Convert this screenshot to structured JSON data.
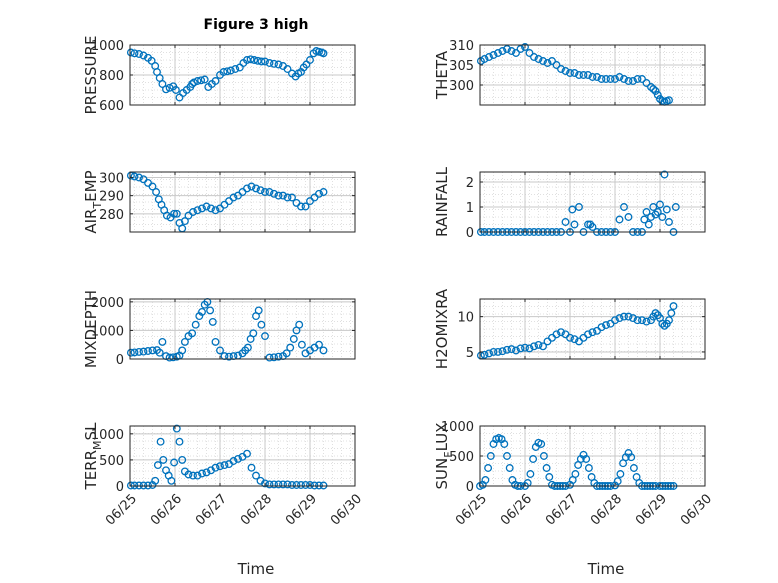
{
  "figure": {
    "title": "Figure 3 high"
  },
  "colors": {
    "marker": "#0072BD",
    "grid": "#c8c8c8",
    "axis": "#262626"
  },
  "chart_data": [
    {
      "type": "scatter",
      "id": "pressure",
      "title": "Figure 3 high",
      "ylabel": "PRESSURE",
      "ylabel_parts": [
        {
          "t": "PRESSURE",
          "s": "n"
        }
      ],
      "xlim": [
        0,
        5
      ],
      "ylim": [
        600,
        1000
      ],
      "yticks": [
        600,
        800,
        1000
      ],
      "grid": true,
      "x": [
        0.02,
        0.1,
        0.2,
        0.3,
        0.4,
        0.48,
        0.56,
        0.6,
        0.66,
        0.72,
        0.8,
        0.88,
        0.96,
        1.02,
        1.1,
        1.18,
        1.26,
        1.34,
        1.38,
        1.42,
        1.5,
        1.58,
        1.66,
        1.74,
        1.82,
        1.9,
        2.0,
        2.08,
        2.16,
        2.24,
        2.34,
        2.44,
        2.52,
        2.6,
        2.68,
        2.76,
        2.84,
        2.92,
        3.0,
        3.1,
        3.2,
        3.3,
        3.4,
        3.5,
        3.6,
        3.68,
        3.74,
        3.8,
        3.86,
        3.92,
        4.0,
        4.08,
        4.14,
        4.2,
        4.26,
        4.3
      ],
      "y": [
        950,
        945,
        940,
        930,
        915,
        895,
        860,
        820,
        780,
        740,
        705,
        715,
        725,
        700,
        650,
        680,
        700,
        720,
        740,
        750,
        760,
        765,
        770,
        720,
        740,
        760,
        800,
        820,
        825,
        830,
        840,
        850,
        880,
        900,
        905,
        900,
        895,
        890,
        890,
        880,
        875,
        870,
        860,
        840,
        810,
        790,
        810,
        820,
        850,
        870,
        900,
        945,
        960,
        955,
        950,
        945
      ]
    },
    {
      "type": "scatter",
      "id": "theta",
      "ylabel": "THETA",
      "ylabel_parts": [
        {
          "t": "THETA",
          "s": "n"
        }
      ],
      "xlim": [
        0,
        5
      ],
      "ylim": [
        295,
        310
      ],
      "yticks": [
        300,
        305,
        310
      ],
      "grid": true,
      "x": [
        0.02,
        0.1,
        0.2,
        0.3,
        0.4,
        0.5,
        0.6,
        0.7,
        0.8,
        0.9,
        1.0,
        1.1,
        1.2,
        1.3,
        1.4,
        1.5,
        1.6,
        1.7,
        1.8,
        1.9,
        2.0,
        2.1,
        2.2,
        2.3,
        2.4,
        2.5,
        2.6,
        2.7,
        2.8,
        2.9,
        3.0,
        3.1,
        3.2,
        3.3,
        3.4,
        3.5,
        3.6,
        3.7,
        3.8,
        3.85,
        3.9,
        3.95,
        4.0,
        4.05,
        4.1,
        4.15,
        4.2
      ],
      "y": [
        306,
        306.5,
        307,
        307.5,
        308,
        308.5,
        309,
        308.5,
        308,
        309,
        309.5,
        308,
        307,
        306.5,
        306,
        305.5,
        306,
        305,
        304,
        303.5,
        303,
        303,
        302.5,
        302.5,
        302.5,
        302,
        302,
        301.5,
        301.5,
        301.5,
        301.5,
        302,
        301.5,
        301,
        301,
        301.5,
        301.5,
        300.5,
        299.5,
        299,
        298.5,
        297.5,
        296.5,
        296,
        295.8,
        296,
        296.2
      ]
    },
    {
      "type": "scatter",
      "id": "air_temp",
      "ylabel": "AIR_TEMP",
      "ylabel_parts": [
        {
          "t": "AIR",
          "s": "n"
        },
        {
          "t": "T",
          "s": "sub"
        },
        {
          "t": "EMP",
          "s": "n"
        }
      ],
      "xlim": [
        0,
        5
      ],
      "ylim": [
        270,
        303
      ],
      "yticks": [
        280,
        290,
        300
      ],
      "grid": true,
      "x": [
        0.02,
        0.1,
        0.2,
        0.3,
        0.4,
        0.5,
        0.58,
        0.64,
        0.7,
        0.76,
        0.82,
        0.9,
        0.98,
        1.04,
        1.1,
        1.16,
        1.22,
        1.3,
        1.4,
        1.5,
        1.6,
        1.7,
        1.8,
        1.9,
        2.0,
        2.1,
        2.2,
        2.3,
        2.4,
        2.5,
        2.6,
        2.7,
        2.8,
        2.9,
        3.0,
        3.1,
        3.2,
        3.3,
        3.4,
        3.5,
        3.6,
        3.7,
        3.8,
        3.9,
        4.0,
        4.1,
        4.2,
        4.3
      ],
      "y": [
        301,
        300.5,
        300,
        299,
        297,
        295,
        292,
        288,
        285,
        282,
        279,
        278,
        280,
        280,
        275,
        272,
        276,
        279,
        281,
        282,
        283,
        284,
        283,
        282,
        283,
        285,
        287,
        289,
        290,
        292,
        294,
        295,
        294,
        293,
        292,
        292,
        291,
        290,
        290,
        289,
        289,
        286,
        284,
        284,
        287,
        289,
        291,
        292
      ]
    },
    {
      "type": "scatter",
      "id": "rainfall",
      "ylabel": "RAINFALL",
      "ylabel_parts": [
        {
          "t": "RAINFALL",
          "s": "n"
        }
      ],
      "xlim": [
        0,
        5
      ],
      "ylim": [
        0,
        2.4
      ],
      "yticks": [
        0,
        1,
        2
      ],
      "grid": true,
      "x": [
        0.02,
        0.1,
        0.2,
        0.3,
        0.4,
        0.5,
        0.6,
        0.7,
        0.8,
        0.9,
        1.0,
        1.1,
        1.2,
        1.3,
        1.4,
        1.5,
        1.6,
        1.7,
        1.8,
        1.9,
        2.0,
        2.05,
        2.1,
        2.2,
        2.3,
        2.4,
        2.45,
        2.5,
        2.6,
        2.7,
        2.8,
        2.9,
        3.0,
        3.1,
        3.2,
        3.3,
        3.4,
        3.5,
        3.6,
        3.65,
        3.7,
        3.75,
        3.8,
        3.85,
        3.9,
        3.95,
        4.0,
        4.05,
        4.1,
        4.15,
        4.2,
        4.3,
        4.35
      ],
      "y": [
        0,
        0,
        0,
        0,
        0,
        0,
        0,
        0,
        0,
        0,
        0,
        0,
        0,
        0,
        0,
        0,
        0,
        0,
        0,
        0.4,
        0,
        0.9,
        0.3,
        1.0,
        0,
        0.3,
        0.3,
        0.2,
        0,
        0,
        0,
        0,
        0,
        0.5,
        1.0,
        0.6,
        0,
        0,
        0,
        0.5,
        0.8,
        0.3,
        0.6,
        1.0,
        0.7,
        0.8,
        1.1,
        0.6,
        2.3,
        0.9,
        0.4,
        0,
        1.0
      ]
    },
    {
      "type": "scatter",
      "id": "mixdepth",
      "ylabel": "MIXDEPTH",
      "ylabel_parts": [
        {
          "t": "MIXDEPTH",
          "s": "n"
        }
      ],
      "xlim": [
        0,
        5
      ],
      "ylim": [
        0,
        2100
      ],
      "yticks": [
        0,
        1000,
        2000
      ],
      "grid": true,
      "x": [
        0.02,
        0.1,
        0.2,
        0.3,
        0.4,
        0.5,
        0.6,
        0.66,
        0.72,
        0.8,
        0.88,
        0.96,
        1.04,
        1.1,
        1.16,
        1.22,
        1.3,
        1.38,
        1.46,
        1.54,
        1.6,
        1.66,
        1.72,
        1.78,
        1.84,
        1.9,
        2.0,
        2.1,
        2.2,
        2.3,
        2.4,
        2.5,
        2.56,
        2.62,
        2.68,
        2.74,
        2.8,
        2.86,
        2.92,
        3.0,
        3.1,
        3.2,
        3.3,
        3.4,
        3.48,
        3.56,
        3.64,
        3.7,
        3.76,
        3.82,
        3.9,
        4.0,
        4.1,
        4.2,
        4.3
      ],
      "y": [
        220,
        230,
        250,
        260,
        280,
        300,
        310,
        220,
        600,
        100,
        50,
        60,
        80,
        120,
        300,
        600,
        800,
        900,
        1200,
        1500,
        1650,
        1900,
        2000,
        1700,
        1300,
        600,
        300,
        100,
        80,
        100,
        120,
        200,
        300,
        400,
        700,
        900,
        1500,
        1700,
        1200,
        800,
        50,
        60,
        80,
        100,
        200,
        400,
        700,
        1000,
        1200,
        500,
        200,
        300,
        400,
        500,
        300
      ]
    },
    {
      "type": "scatter",
      "id": "h2omixra",
      "ylabel": "H2OMIXRA",
      "ylabel_parts": [
        {
          "t": "H2OMIXRA",
          "s": "n"
        }
      ],
      "xlim": [
        0,
        5
      ],
      "ylim": [
        4,
        12.5
      ],
      "yticks": [
        5,
        10
      ],
      "grid": true,
      "x": [
        0.02,
        0.1,
        0.2,
        0.3,
        0.4,
        0.5,
        0.6,
        0.7,
        0.8,
        0.9,
        1.0,
        1.1,
        1.2,
        1.3,
        1.4,
        1.5,
        1.6,
        1.7,
        1.8,
        1.9,
        2.0,
        2.1,
        2.2,
        2.3,
        2.4,
        2.5,
        2.6,
        2.7,
        2.8,
        2.9,
        3.0,
        3.1,
        3.2,
        3.3,
        3.4,
        3.5,
        3.6,
        3.7,
        3.8,
        3.85,
        3.9,
        3.95,
        4.0,
        4.05,
        4.1,
        4.15,
        4.2,
        4.25,
        4.3
      ],
      "y": [
        4.5,
        4.6,
        4.8,
        5.0,
        5.0,
        5.1,
        5.3,
        5.4,
        5.2,
        5.5,
        5.6,
        5.5,
        5.8,
        6.0,
        5.8,
        6.5,
        7.0,
        7.5,
        7.8,
        7.5,
        7.0,
        6.8,
        6.5,
        7.0,
        7.5,
        7.8,
        8.0,
        8.5,
        8.8,
        9.0,
        9.5,
        9.8,
        10.0,
        10.0,
        9.8,
        9.5,
        9.5,
        9.3,
        9.5,
        10.0,
        10.5,
        10.2,
        9.8,
        9.0,
        8.7,
        9.0,
        9.5,
        10.5,
        11.5
      ]
    },
    {
      "type": "scatter",
      "id": "terr_msl",
      "ylabel": "TERR_MSL",
      "ylabel_parts": [
        {
          "t": "TERR",
          "s": "n"
        },
        {
          "t": "M",
          "s": "sub"
        },
        {
          "t": "SL",
          "s": "n"
        }
      ],
      "xlim": [
        0,
        5
      ],
      "ylim": [
        0,
        1150
      ],
      "yticks": [
        0,
        500,
        1000
      ],
      "grid": true,
      "x": [
        0.02,
        0.1,
        0.2,
        0.3,
        0.4,
        0.5,
        0.56,
        0.62,
        0.68,
        0.74,
        0.8,
        0.86,
        0.92,
        0.98,
        1.04,
        1.1,
        1.16,
        1.22,
        1.3,
        1.4,
        1.5,
        1.6,
        1.7,
        1.8,
        1.9,
        2.0,
        2.1,
        2.2,
        2.3,
        2.4,
        2.5,
        2.6,
        2.7,
        2.8,
        2.9,
        3.0,
        3.1,
        3.2,
        3.3,
        3.4,
        3.5,
        3.6,
        3.7,
        3.8,
        3.9,
        4.0,
        4.1,
        4.2,
        4.3
      ],
      "y": [
        10,
        10,
        10,
        10,
        10,
        20,
        100,
        400,
        850,
        500,
        300,
        200,
        100,
        450,
        1100,
        850,
        500,
        280,
        220,
        200,
        200,
        240,
        260,
        300,
        350,
        380,
        400,
        420,
        480,
        520,
        560,
        620,
        350,
        200,
        100,
        50,
        30,
        30,
        30,
        30,
        30,
        20,
        20,
        20,
        20,
        20,
        10,
        10,
        10
      ]
    },
    {
      "type": "scatter",
      "id": "sun_flux",
      "ylabel": "SUN_FLUX",
      "ylabel_parts": [
        {
          "t": "SUN",
          "s": "n"
        },
        {
          "t": "F",
          "s": "sub"
        },
        {
          "t": "LUX",
          "s": "n"
        }
      ],
      "xlim": [
        0,
        5
      ],
      "ylim": [
        0,
        1000
      ],
      "yticks": [
        0,
        500,
        1000
      ],
      "grid": true,
      "x": [
        0.0,
        0.06,
        0.12,
        0.18,
        0.24,
        0.3,
        0.36,
        0.42,
        0.48,
        0.54,
        0.6,
        0.66,
        0.72,
        0.78,
        0.84,
        0.9,
        1.0,
        1.06,
        1.12,
        1.18,
        1.24,
        1.3,
        1.36,
        1.42,
        1.48,
        1.54,
        1.6,
        1.66,
        1.72,
        1.78,
        1.84,
        1.9,
        2.0,
        2.06,
        2.12,
        2.18,
        2.24,
        2.3,
        2.36,
        2.42,
        2.48,
        2.54,
        2.6,
        2.66,
        2.72,
        2.78,
        2.84,
        2.9,
        3.0,
        3.06,
        3.12,
        3.18,
        3.24,
        3.3,
        3.36,
        3.42,
        3.48,
        3.54,
        3.6,
        3.66,
        3.72,
        3.78,
        3.84,
        3.9,
        4.0,
        4.06,
        4.12,
        4.18,
        4.24,
        4.3
      ],
      "y": [
        0,
        20,
        100,
        300,
        500,
        700,
        780,
        800,
        780,
        700,
        500,
        300,
        100,
        20,
        0,
        0,
        0,
        50,
        200,
        450,
        650,
        720,
        700,
        500,
        300,
        150,
        20,
        0,
        0,
        0,
        0,
        0,
        20,
        100,
        200,
        350,
        450,
        520,
        450,
        300,
        150,
        50,
        0,
        0,
        0,
        0,
        0,
        0,
        10,
        80,
        200,
        380,
        480,
        550,
        480,
        300,
        150,
        50,
        0,
        0,
        0,
        0,
        0,
        0,
        0,
        0,
        0,
        0,
        0,
        0
      ]
    }
  ],
  "x_axis": {
    "label": "Time",
    "ticks": [
      0,
      1,
      2,
      3,
      4,
      5
    ],
    "tick_labels": [
      "06/25",
      "06/26",
      "06/27",
      "06/28",
      "06/29",
      "06/30"
    ]
  }
}
